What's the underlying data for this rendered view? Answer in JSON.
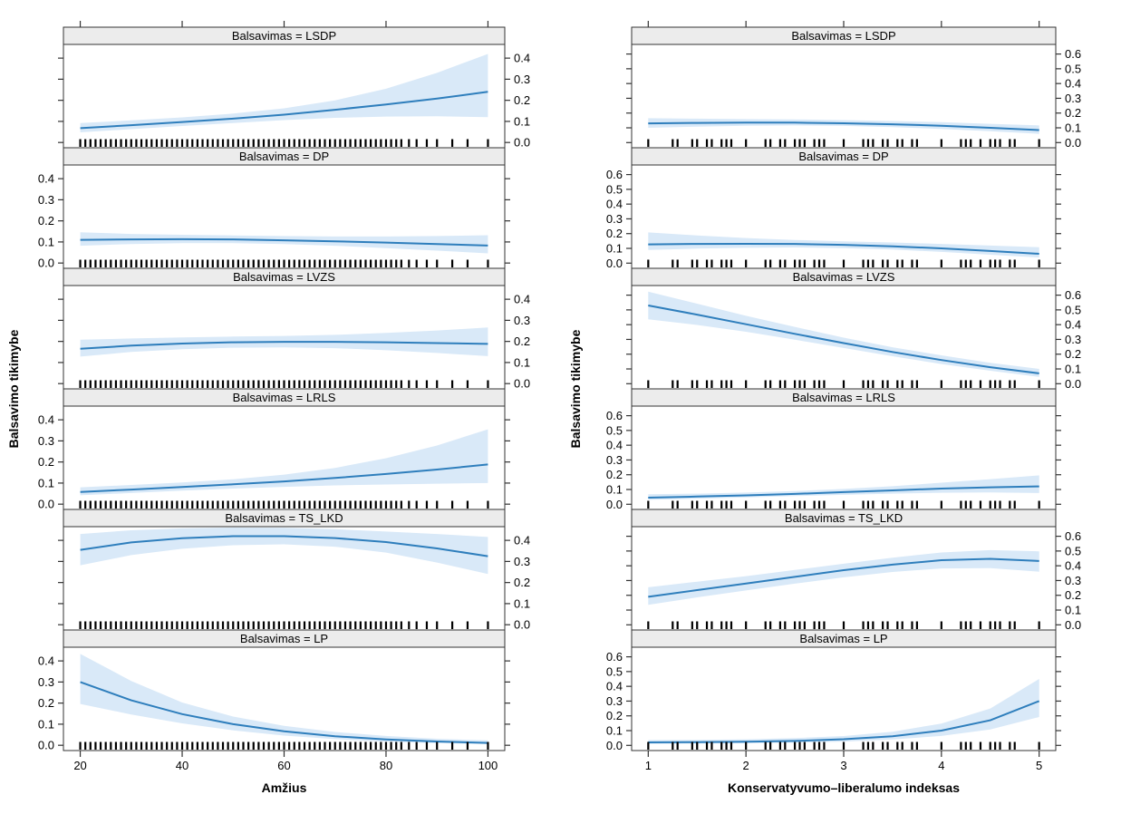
{
  "figure": {
    "background": "#ffffff",
    "line_color": "#2e7ebc",
    "band_color": "#d9e9f8",
    "strip_color": "#ececec",
    "border_color": "#333333",
    "rug_color": "#000000"
  },
  "chart_data": [
    {
      "type": "line",
      "title": "",
      "xlabel": "Amžius",
      "ylabel": "Balsavimo tikimybe",
      "xlim": [
        16.7,
        103.3
      ],
      "ylim": [
        -0.025,
        0.465
      ],
      "x_ticks": [
        20,
        40,
        60,
        80,
        100
      ],
      "x_tick_labels": [
        "20",
        "40",
        "60",
        "80",
        "100"
      ],
      "y_ticks": [
        0.0,
        0.1,
        0.2,
        0.3,
        0.4
      ],
      "y_tick_labels": [
        "0.0",
        "0.1",
        "0.2",
        "0.3",
        "0.4"
      ],
      "grid": false,
      "legend": "none",
      "x": [
        20,
        30,
        40,
        50,
        60,
        70,
        80,
        90,
        100
      ],
      "rug": [
        20,
        21,
        22,
        23,
        24,
        25,
        26,
        27,
        28,
        29,
        30,
        31,
        32,
        33,
        34,
        35,
        36,
        37,
        38,
        39,
        40,
        41,
        42,
        43,
        44,
        45,
        46,
        47,
        48,
        49,
        50,
        51,
        52,
        53,
        54,
        55,
        56,
        57,
        58,
        59,
        60,
        61,
        62,
        63,
        64,
        65,
        66,
        67,
        68,
        69,
        70,
        71,
        72,
        73,
        74,
        75,
        76,
        77,
        78,
        79,
        80,
        81,
        82,
        83,
        84.5,
        86,
        88,
        90,
        93,
        96,
        100
      ],
      "panels": [
        {
          "label": "LSDP",
          "strip": "Balsavimas = LSDP",
          "tick_label_side": "right",
          "fit": [
            0.068,
            0.082,
            0.097,
            0.113,
            0.132,
            0.155,
            0.18,
            0.208,
            0.24
          ],
          "lower": [
            0.048,
            0.063,
            0.078,
            0.092,
            0.106,
            0.117,
            0.123,
            0.124,
            0.12
          ],
          "upper": [
            0.092,
            0.105,
            0.119,
            0.137,
            0.162,
            0.2,
            0.255,
            0.33,
            0.42
          ]
        },
        {
          "label": "DP",
          "strip": "Balsavimas = DP",
          "tick_label_side": "left",
          "fit": [
            0.11,
            0.112,
            0.113,
            0.112,
            0.108,
            0.103,
            0.097,
            0.09,
            0.083
          ],
          "lower": [
            0.082,
            0.09,
            0.094,
            0.094,
            0.09,
            0.082,
            0.071,
            0.059,
            0.046
          ],
          "upper": [
            0.146,
            0.138,
            0.134,
            0.131,
            0.128,
            0.126,
            0.126,
            0.128,
            0.132
          ]
        },
        {
          "label": "LVZS",
          "strip": "Balsavimas = LVZS",
          "tick_label_side": "right",
          "fit": [
            0.165,
            0.18,
            0.19,
            0.196,
            0.198,
            0.198,
            0.196,
            0.192,
            0.188
          ],
          "lower": [
            0.128,
            0.15,
            0.163,
            0.17,
            0.172,
            0.168,
            0.158,
            0.145,
            0.13
          ],
          "upper": [
            0.208,
            0.214,
            0.219,
            0.223,
            0.226,
            0.231,
            0.24,
            0.252,
            0.266
          ]
        },
        {
          "label": "LRLS",
          "strip": "Balsavimas = LRLS",
          "tick_label_side": "left",
          "fit": [
            0.058,
            0.069,
            0.081,
            0.094,
            0.108,
            0.124,
            0.143,
            0.164,
            0.188
          ],
          "lower": [
            0.042,
            0.053,
            0.064,
            0.074,
            0.082,
            0.089,
            0.093,
            0.097,
            0.1
          ],
          "upper": [
            0.08,
            0.091,
            0.103,
            0.118,
            0.14,
            0.172,
            0.218,
            0.278,
            0.355
          ]
        },
        {
          "label": "TS_LKD",
          "strip": "Balsavimas = TS_LKD",
          "tick_label_side": "right",
          "fit": [
            0.355,
            0.39,
            0.41,
            0.42,
            0.42,
            0.411,
            0.392,
            0.362,
            0.325
          ],
          "lower": [
            0.282,
            0.33,
            0.36,
            0.377,
            0.381,
            0.37,
            0.342,
            0.295,
            0.24
          ],
          "upper": [
            0.43,
            0.448,
            0.457,
            0.461,
            0.46,
            0.453,
            0.442,
            0.43,
            0.416
          ]
        },
        {
          "label": "LP",
          "strip": "Balsavimas = LP",
          "tick_label_side": "left",
          "fit": [
            0.3,
            0.213,
            0.148,
            0.1,
            0.066,
            0.043,
            0.028,
            0.018,
            0.011
          ],
          "lower": [
            0.196,
            0.146,
            0.104,
            0.071,
            0.046,
            0.029,
            0.017,
            0.01,
            0.006
          ],
          "upper": [
            0.433,
            0.305,
            0.203,
            0.136,
            0.092,
            0.063,
            0.044,
            0.031,
            0.023
          ]
        }
      ]
    },
    {
      "type": "line",
      "title": "",
      "xlabel": "Konservatyvumo–liberalumo indeksas",
      "ylabel": "Balsavimo tikimybe",
      "xlim": [
        0.83,
        5.17
      ],
      "ylim": [
        -0.035,
        0.665
      ],
      "x_ticks": [
        1,
        2,
        3,
        4,
        5
      ],
      "x_tick_labels": [
        "1",
        "2",
        "3",
        "4",
        "5"
      ],
      "y_ticks": [
        0.0,
        0.1,
        0.2,
        0.3,
        0.4,
        0.5,
        0.6
      ],
      "y_tick_labels": [
        "0.0",
        "0.1",
        "0.2",
        "0.3",
        "0.4",
        "0.5",
        "0.6"
      ],
      "grid": false,
      "legend": "none",
      "x": [
        1,
        1.5,
        2,
        2.5,
        3,
        3.5,
        4,
        4.5,
        5
      ],
      "rug": [
        1.0,
        1.25,
        1.3,
        1.45,
        1.5,
        1.6,
        1.65,
        1.75,
        1.8,
        1.85,
        2.0,
        2.2,
        2.25,
        2.35,
        2.4,
        2.5,
        2.55,
        2.6,
        2.7,
        2.75,
        2.8,
        3.0,
        3.2,
        3.25,
        3.3,
        3.4,
        3.45,
        3.55,
        3.6,
        3.7,
        3.75,
        4.0,
        4.2,
        4.25,
        4.3,
        4.4,
        4.5,
        4.55,
        4.6,
        4.7,
        4.75,
        5.0
      ],
      "panels": [
        {
          "label": "LSDP",
          "strip": "Balsavimas = LSDP",
          "tick_label_side": "right",
          "fit": [
            0.13,
            0.133,
            0.135,
            0.135,
            0.131,
            0.124,
            0.114,
            0.1,
            0.085
          ],
          "lower": [
            0.1,
            0.108,
            0.114,
            0.116,
            0.113,
            0.105,
            0.093,
            0.077,
            0.059
          ],
          "upper": [
            0.165,
            0.162,
            0.159,
            0.157,
            0.152,
            0.146,
            0.138,
            0.127,
            0.116
          ]
        },
        {
          "label": "DP",
          "strip": "Balsavimas = DP",
          "tick_label_side": "left",
          "fit": [
            0.127,
            0.13,
            0.131,
            0.13,
            0.124,
            0.114,
            0.1,
            0.082,
            0.063
          ],
          "lower": [
            0.089,
            0.098,
            0.104,
            0.106,
            0.102,
            0.092,
            0.076,
            0.057,
            0.038
          ],
          "upper": [
            0.208,
            0.188,
            0.17,
            0.157,
            0.148,
            0.14,
            0.13,
            0.119,
            0.108
          ]
        },
        {
          "label": "LVZS",
          "strip": "Balsavimas = LVZS",
          "tick_label_side": "right",
          "fit": [
            0.53,
            0.468,
            0.403,
            0.338,
            0.275,
            0.215,
            0.16,
            0.112,
            0.07
          ],
          "lower": [
            0.436,
            0.398,
            0.352,
            0.298,
            0.242,
            0.186,
            0.133,
            0.088,
            0.046
          ],
          "upper": [
            0.624,
            0.542,
            0.46,
            0.385,
            0.312,
            0.247,
            0.192,
            0.142,
            0.1
          ]
        },
        {
          "label": "LRLS",
          "strip": "Balsavimas = LRLS",
          "tick_label_side": "left",
          "fit": [
            0.045,
            0.052,
            0.06,
            0.07,
            0.082,
            0.094,
            0.106,
            0.115,
            0.121
          ],
          "lower": [
            0.03,
            0.038,
            0.046,
            0.055,
            0.064,
            0.072,
            0.078,
            0.08,
            0.076
          ],
          "upper": [
            0.068,
            0.072,
            0.079,
            0.089,
            0.104,
            0.122,
            0.146,
            0.17,
            0.196
          ]
        },
        {
          "label": "TS_LKD",
          "strip": "Balsavimas = TS_LKD",
          "tick_label_side": "right",
          "fit": [
            0.19,
            0.235,
            0.28,
            0.325,
            0.37,
            0.408,
            0.438,
            0.447,
            0.432
          ],
          "lower": [
            0.136,
            0.186,
            0.233,
            0.279,
            0.322,
            0.358,
            0.382,
            0.384,
            0.36
          ],
          "upper": [
            0.254,
            0.292,
            0.33,
            0.372,
            0.414,
            0.455,
            0.49,
            0.506,
            0.498
          ]
        },
        {
          "label": "LP",
          "strip": "Balsavimas = LP",
          "tick_label_side": "left",
          "fit": [
            0.02,
            0.022,
            0.025,
            0.03,
            0.042,
            0.062,
            0.1,
            0.17,
            0.3
          ],
          "lower": [
            0.01,
            0.012,
            0.014,
            0.018,
            0.026,
            0.04,
            0.064,
            0.108,
            0.192
          ],
          "upper": [
            0.036,
            0.037,
            0.041,
            0.049,
            0.063,
            0.093,
            0.148,
            0.25,
            0.45
          ]
        }
      ]
    }
  ]
}
